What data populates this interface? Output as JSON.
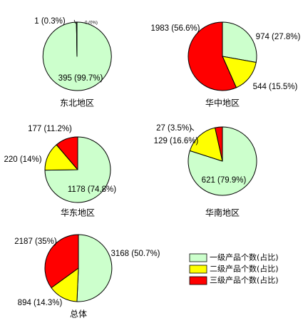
{
  "chart_data": {
    "type": "pie",
    "legend": {
      "placement": "bottom-right",
      "entries": [
        "一级产品个数(占比)",
        "二级产品个数(占比)",
        "三级产品个数(占比)"
      ]
    },
    "colors": [
      "#ccffcc",
      "#ffff00",
      "#ff0000"
    ],
    "charts": [
      {
        "title": "东北地区",
        "values": [
          395,
          0,
          1
        ],
        "labels": [
          "395 (99.7%)",
          "0 (0%)",
          "1 (0.3%)"
        ]
      },
      {
        "title": "华中地区",
        "values": [
          974,
          544,
          1983
        ],
        "labels": [
          "974 (27.8%)",
          "544 (15.5%)",
          "1983 (56.6%)"
        ]
      },
      {
        "title": "华东地区",
        "values": [
          1178,
          220,
          177
        ],
        "labels": [
          "1178 (74.8%)",
          "220 (14%)",
          "177 (11.2%)"
        ]
      },
      {
        "title": "华南地区",
        "values": [
          621,
          129,
          27
        ],
        "labels": [
          "621 (79.9%)",
          "129 (16.6%)",
          "27 (3.5%)"
        ]
      },
      {
        "title": "总体",
        "values": [
          3168,
          894,
          2187
        ],
        "labels": [
          "3168 (50.7%)",
          "894 (14.3%)",
          "2187 (35%)"
        ]
      }
    ]
  }
}
